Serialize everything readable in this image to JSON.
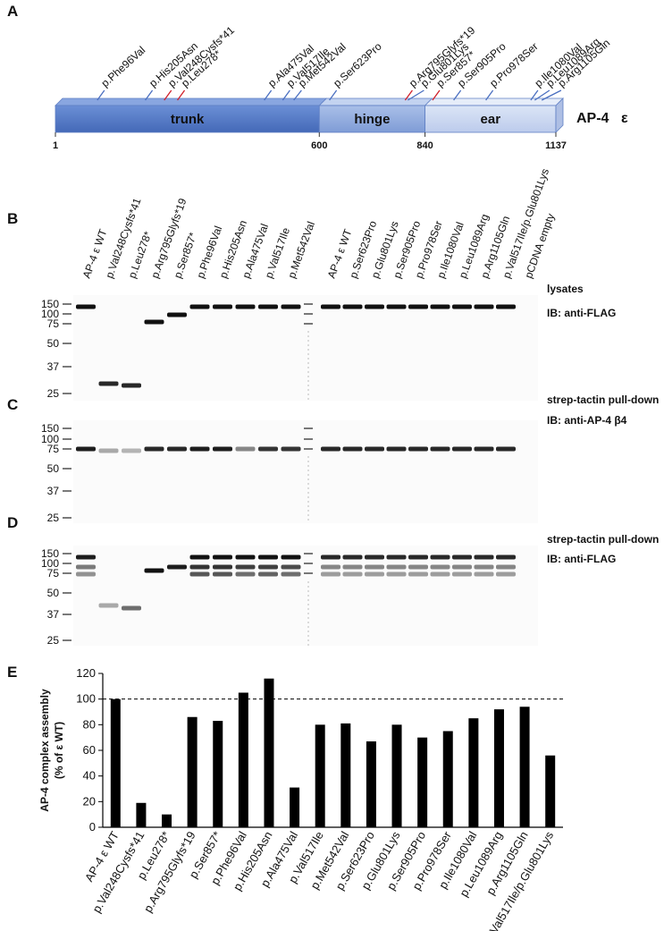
{
  "panel_a": {
    "letter": "A",
    "domains": [
      "trunk",
      "hinge",
      "ear"
    ],
    "ticks": [
      1,
      600,
      840,
      1137
    ],
    "protein": "AP-4",
    "protein_symbol": "ε",
    "mutations": [
      {
        "label": "p.Phe96Val",
        "color": "#4a6fc0"
      },
      {
        "label": "p.His205Asn",
        "color": "#4a6fc0"
      },
      {
        "label": "p.Val248Cysfs*41",
        "color": "#d0202a"
      },
      {
        "label": "p.Leu278*",
        "color": "#d0202a"
      },
      {
        "label": "p.Ala475Val",
        "color": "#4a6fc0"
      },
      {
        "label": "p.Val517Ile",
        "color": "#4a6fc0"
      },
      {
        "label": "p.Met542Val",
        "color": "#4a6fc0"
      },
      {
        "label": "p.Ser623Pro",
        "color": "#4a6fc0"
      },
      {
        "label": "p.Arg795Glyfs*19",
        "color": "#d0202a"
      },
      {
        "label": "p.Glu801Lys",
        "color": "#4a6fc0"
      },
      {
        "label": "p.Ser857*",
        "color": "#d0202a"
      },
      {
        "label": "p.Ser905Pro",
        "color": "#4a6fc0"
      },
      {
        "label": "p.Pro978Ser",
        "color": "#4a6fc0"
      },
      {
        "label": "p.Ile1080Val",
        "color": "#4a6fc0"
      },
      {
        "label": "p.Leu1089Arg",
        "color": "#4a6fc0"
      },
      {
        "label": "p.Arg1105Gln",
        "color": "#4a6fc0"
      }
    ]
  },
  "panel_b": {
    "letter": "B",
    "lanes_left": [
      "AP-4 ε WT",
      "p.Val248Cysfs*41",
      "p.Leu278*",
      "p.Arg795Glyfs*19",
      "p.Ser857*",
      "p.Phe96Val",
      "p.His205Asn",
      "p.Ala475Val",
      "p.Val517Ile",
      "p.Met542Val"
    ],
    "lanes_right": [
      "AP-4 ε WT",
      "p.Ser623Pro",
      "p.Glu801Lys",
      "p.Ser905Pro",
      "p.Pro978Ser",
      "p.Ile1080Val",
      "p.Leu1089Arg",
      "p.Arg1105Gln",
      "p.Val517Ile/p.Glu801Lys",
      "pCDNA empty"
    ],
    "markers": [
      "150",
      "100",
      "75",
      "50",
      "37",
      "25"
    ],
    "notes": [
      "lysates",
      "IB: anti-FLAG"
    ]
  },
  "panel_c": {
    "letter": "C",
    "markers": [
      "150",
      "100",
      "75",
      "50",
      "37",
      "25"
    ],
    "notes": [
      "strep-tactin pull-down",
      "IB: anti-AP-4 β4"
    ]
  },
  "panel_d": {
    "letter": "D",
    "markers": [
      "150",
      "100",
      "75",
      "50",
      "37",
      "25"
    ],
    "notes": [
      "strep-tactin pull-down",
      "IB: anti-FLAG"
    ]
  },
  "chart_data": {
    "type": "bar",
    "letter": "E",
    "ylabel": [
      "AP-4 complex assembly",
      "(% of ε WT)"
    ],
    "categories": [
      "AP-4 ε WT",
      "p.Val248Cysfs*41",
      "p.Leu278*",
      "p.Arg795Glyfs*19",
      "p.Ser857*",
      "p.Phe96Val",
      "p.His205Asn",
      "p.Ala475Val",
      "p.Val517Ile",
      "p.Met542Val",
      "p.Ser623Pro",
      "p.Glu801Lys",
      "p.Ser905Pro",
      "p.Pro978Ser",
      "p.Ile1080Val",
      "p.Leu1089Arg",
      "p.Arg1105Gln",
      "p.Val517Ile/p.Glu801Lys"
    ],
    "values": [
      100,
      19,
      10,
      86,
      83,
      105,
      116,
      31,
      80,
      81,
      67,
      80,
      70,
      75,
      85,
      92,
      94,
      56
    ],
    "color": "#000000",
    "ylim": [
      0,
      120
    ],
    "yticks": [
      0,
      20,
      40,
      60,
      80,
      100,
      120
    ],
    "reference_line": 100,
    "grid": false
  }
}
